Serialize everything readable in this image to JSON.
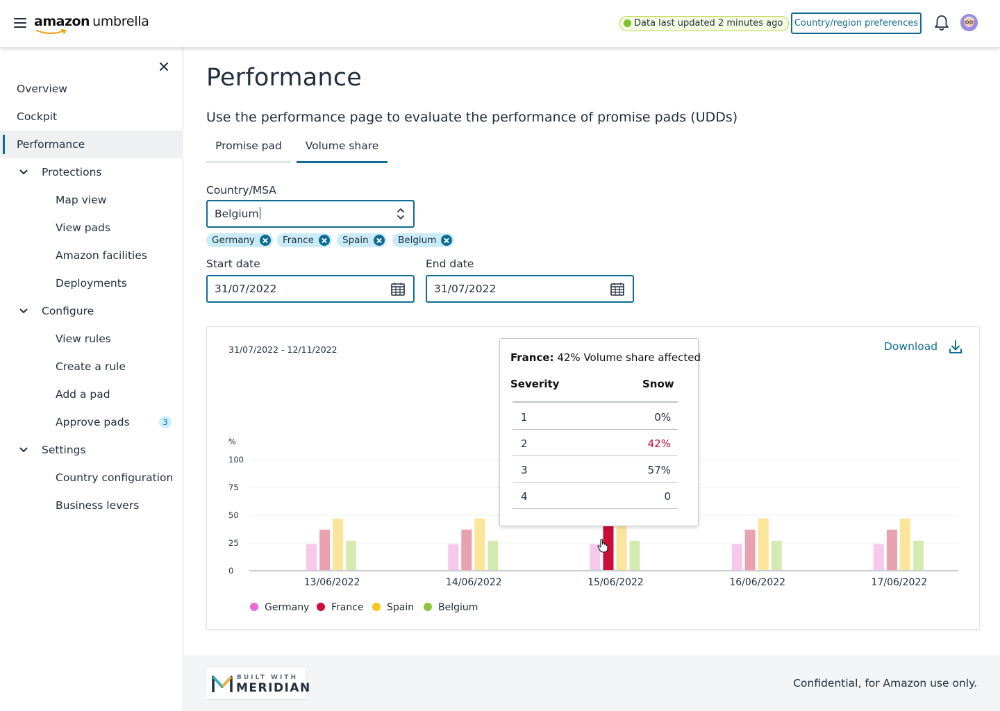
{
  "header": {
    "logo_amazon": "amazon",
    "logo_product": "umbrella",
    "status_text": "Data last updated 2 minutes ago",
    "preferences_label": "Country/region preferences",
    "icons": [
      "menu-icon",
      "bell-icon",
      "avatar"
    ]
  },
  "sidebar": {
    "items": [
      {
        "label": "Overview"
      },
      {
        "label": "Cockpit"
      },
      {
        "label": "Performance",
        "active": true
      },
      {
        "label": "Protections",
        "expanded": true
      },
      {
        "label": "Map view"
      },
      {
        "label": "View pads"
      },
      {
        "label": "Amazon facilities"
      },
      {
        "label": "Deployments"
      },
      {
        "label": "Configure",
        "expanded": true
      },
      {
        "label": "View rules"
      },
      {
        "label": "Create a rule"
      },
      {
        "label": "Add a pad"
      },
      {
        "label": "Approve pads",
        "badge": "3"
      },
      {
        "label": "Settings",
        "expanded": true
      },
      {
        "label": "Country configuration"
      },
      {
        "label": "Business levers"
      }
    ]
  },
  "main": {
    "title": "Performance",
    "description": "Use the performance page to evaluate the performance of promise pads (UDDs)",
    "tabs": [
      {
        "label": "Promise pad",
        "selected": false
      },
      {
        "label": "Volume share",
        "selected": true
      }
    ],
    "country_label": "Country/MSA",
    "country_value": "Belgium",
    "chips": [
      "Germany",
      "France",
      "Spain",
      "Belgium"
    ],
    "start_label": "Start date",
    "start_value": "31/07/2022",
    "end_label": "End date",
    "end_value": "31/07/2022"
  },
  "chart_card": {
    "range": "31/07/2022 - 12/11/2022",
    "download_label": "Download"
  },
  "chart_data": {
    "type": "bar",
    "ylabel": "%",
    "ylim": [
      0,
      100
    ],
    "yticks": [
      "0",
      "25",
      "50",
      "75",
      "100"
    ],
    "categories": [
      "13/06/2022",
      "14/06/2022",
      "15/06/2022",
      "16/06/2022",
      "17/06/2022"
    ],
    "series": [
      {
        "name": "Germany",
        "color": "#f6c8ec",
        "values": [
          24,
          24,
          24,
          24,
          24
        ]
      },
      {
        "name": "France",
        "color": "#e9a1b1",
        "values": [
          37,
          37,
          40,
          37,
          37
        ]
      },
      {
        "name": "Spain",
        "color": "#fbe59a",
        "values": [
          47,
          47,
          47,
          47,
          47
        ]
      },
      {
        "name": "Belgium",
        "color": "#d5eab0",
        "values": [
          27,
          27,
          27,
          27,
          27
        ]
      }
    ],
    "highlight": {
      "series": "France",
      "category": "15/06/2022",
      "color": "#cc0c39"
    },
    "legend": [
      {
        "name": "Germany",
        "color": "#e86bd8"
      },
      {
        "name": "France",
        "color": "#cc0c39"
      },
      {
        "name": "Spain",
        "color": "#f5c518"
      },
      {
        "name": "Belgium",
        "color": "#8cc63f"
      }
    ],
    "legend_position": "bottom-left",
    "grid": true
  },
  "tooltip": {
    "title_country": "France:",
    "title_text": "42% Volume share affected",
    "col1": "Severity",
    "col2": "Snow",
    "rows": [
      {
        "severity": "1",
        "value": "0%"
      },
      {
        "severity": "2",
        "value": "42%",
        "highlight": true
      },
      {
        "severity": "3",
        "value": "57%"
      },
      {
        "severity": "4",
        "value": "0"
      }
    ]
  },
  "footer": {
    "built_with": "BUILT WITH",
    "brand": "MERIDIAN",
    "confidential": "Confidential, for Amazon use only."
  }
}
